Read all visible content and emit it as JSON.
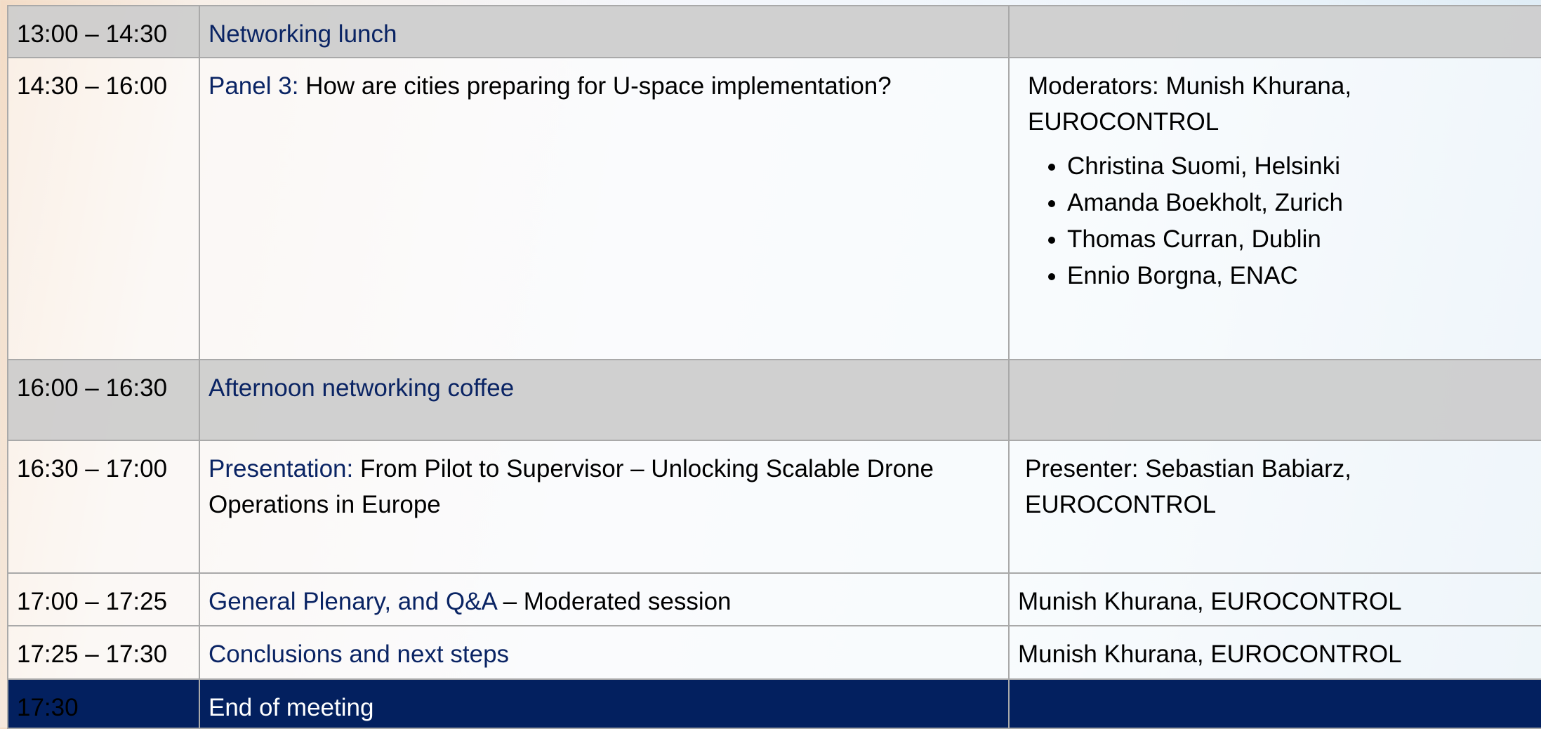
{
  "rows": [
    {
      "time": "13:00 – 14:30",
      "title": "Networking lunch"
    },
    {
      "time": "14:30 – 16:00",
      "title": "Panel 3:",
      "text": "How are cities preparing for U-space implementation?",
      "right": "Moderators: Munish Khurana, EUROCONTROL",
      "bullets": [
        "Christina Suomi, Helsinki",
        "Amanda Boekholt, Zurich",
        "Thomas Curran, Dublin",
        "Ennio Borgna, ENAC"
      ]
    },
    {
      "time": "16:00 – 16:30",
      "title": "Afternoon networking coffee"
    },
    {
      "time": "16:30 – 17:00",
      "title": "Presentation:",
      "text": "From Pilot to Supervisor – Unlocking Scalable Drone Operations in Europe",
      "right": "Presenter: Sebastian Babiarz, EUROCONTROL"
    },
    {
      "time": "17:00 – 17:25",
      "title": "General Plenary, and Q&A",
      "text": "– Moderated session",
      "right": "Munish Khurana, EUROCONTROL"
    },
    {
      "time": "17:25 – 17:30",
      "title": "Conclusions and next steps",
      "right": "Munish Khurana, EUROCONTROL"
    },
    {
      "time": "17:30",
      "title": "End of meeting"
    }
  ]
}
